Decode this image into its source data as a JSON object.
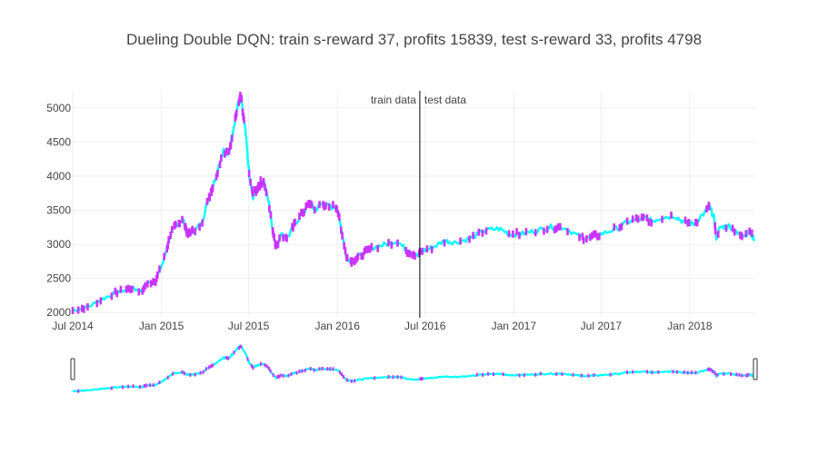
{
  "chart_data": {
    "type": "line",
    "title": "Dueling Double DQN: train s-reward 37, profits 15839, test s-reward 33, profits 4798",
    "xlabel": "",
    "ylabel": "",
    "x_range": [
      "2014-07-01",
      "2018-05-15"
    ],
    "ylim": [
      1950,
      5250
    ],
    "y_ticks": [
      2000,
      2500,
      3000,
      3500,
      4000,
      4500,
      5000
    ],
    "x_ticks": [
      {
        "date": "2014-07-01",
        "label": "Jul 2014"
      },
      {
        "date": "2015-01-01",
        "label": "Jan 2015"
      },
      {
        "date": "2015-07-01",
        "label": "Jul 2015"
      },
      {
        "date": "2016-01-01",
        "label": "Jan 2016"
      },
      {
        "date": "2016-07-01",
        "label": "Jul 2016"
      },
      {
        "date": "2017-01-01",
        "label": "Jan 2017"
      },
      {
        "date": "2017-07-01",
        "label": "Jul 2017"
      },
      {
        "date": "2018-01-01",
        "label": "Jan 2018"
      }
    ],
    "grid": true,
    "split": {
      "date": "2016-06-20",
      "left_label": "train data",
      "right_label": "test data"
    },
    "colors": {
      "price": "#00ffff",
      "action": "#cc33ff",
      "split_line": "#000000"
    },
    "rangeslider": true,
    "series": [
      {
        "values": [
          [
            "2014-07-01",
            2030
          ],
          [
            "2014-08-01",
            2080
          ],
          [
            "2014-09-01",
            2200
          ],
          [
            "2014-10-01",
            2300
          ],
          [
            "2014-11-01",
            2360
          ],
          [
            "2014-11-20",
            2310
          ],
          [
            "2014-12-01",
            2420
          ],
          [
            "2014-12-20",
            2470
          ],
          [
            "2015-01-05",
            2750
          ],
          [
            "2015-01-20",
            3150
          ],
          [
            "2015-02-01",
            3300
          ],
          [
            "2015-02-15",
            3350
          ],
          [
            "2015-02-25",
            3150
          ],
          [
            "2015-03-10",
            3200
          ],
          [
            "2015-03-25",
            3300
          ],
          [
            "2015-04-10",
            3700
          ],
          [
            "2015-04-20",
            3900
          ],
          [
            "2015-05-10",
            4400
          ],
          [
            "2015-05-20",
            4300
          ],
          [
            "2015-05-30",
            4700
          ],
          [
            "2015-06-10",
            5080
          ],
          [
            "2015-06-15",
            5150
          ],
          [
            "2015-06-25",
            4600
          ],
          [
            "2015-07-03",
            3950
          ],
          [
            "2015-07-10",
            3700
          ],
          [
            "2015-07-20",
            3850
          ],
          [
            "2015-08-01",
            3950
          ],
          [
            "2015-08-12",
            3600
          ],
          [
            "2015-08-20",
            3200
          ],
          [
            "2015-08-28",
            2950
          ],
          [
            "2015-09-05",
            3150
          ],
          [
            "2015-09-20",
            3100
          ],
          [
            "2015-10-05",
            3300
          ],
          [
            "2015-10-20",
            3450
          ],
          [
            "2015-11-05",
            3600
          ],
          [
            "2015-11-15",
            3500
          ],
          [
            "2015-12-01",
            3600
          ],
          [
            "2015-12-15",
            3550
          ],
          [
            "2015-12-31",
            3550
          ],
          [
            "2016-01-10",
            3200
          ],
          [
            "2016-01-20",
            2800
          ],
          [
            "2016-02-01",
            2750
          ],
          [
            "2016-02-20",
            2850
          ],
          [
            "2016-03-15",
            2950
          ],
          [
            "2016-04-10",
            3000
          ],
          [
            "2016-05-05",
            3050
          ],
          [
            "2016-05-25",
            2900
          ],
          [
            "2016-06-15",
            2840
          ],
          [
            "2016-06-25",
            2900
          ],
          [
            "2016-07-15",
            2950
          ],
          [
            "2016-08-10",
            3050
          ],
          [
            "2016-09-01",
            3030
          ],
          [
            "2016-10-01",
            3080
          ],
          [
            "2016-11-01",
            3200
          ],
          [
            "2016-12-01",
            3230
          ],
          [
            "2016-12-25",
            3150
          ],
          [
            "2017-01-15",
            3150
          ],
          [
            "2017-02-15",
            3200
          ],
          [
            "2017-03-15",
            3250
          ],
          [
            "2017-04-15",
            3250
          ],
          [
            "2017-05-15",
            3120
          ],
          [
            "2017-06-01",
            3080
          ],
          [
            "2017-07-01",
            3150
          ],
          [
            "2017-08-01",
            3230
          ],
          [
            "2017-09-01",
            3350
          ],
          [
            "2017-10-01",
            3380
          ],
          [
            "2017-10-15",
            3340
          ],
          [
            "2017-11-01",
            3390
          ],
          [
            "2017-12-01",
            3420
          ],
          [
            "2017-12-20",
            3320
          ],
          [
            "2018-01-10",
            3300
          ],
          [
            "2018-02-05",
            3500
          ],
          [
            "2018-02-10",
            3560
          ],
          [
            "2018-02-20",
            3400
          ],
          [
            "2018-02-25",
            3100
          ],
          [
            "2018-03-05",
            3250
          ],
          [
            "2018-03-25",
            3270
          ],
          [
            "2018-04-10",
            3150
          ],
          [
            "2018-04-25",
            3140
          ],
          [
            "2018-05-05",
            3180
          ],
          [
            "2018-05-15",
            3080
          ]
        ]
      }
    ]
  }
}
